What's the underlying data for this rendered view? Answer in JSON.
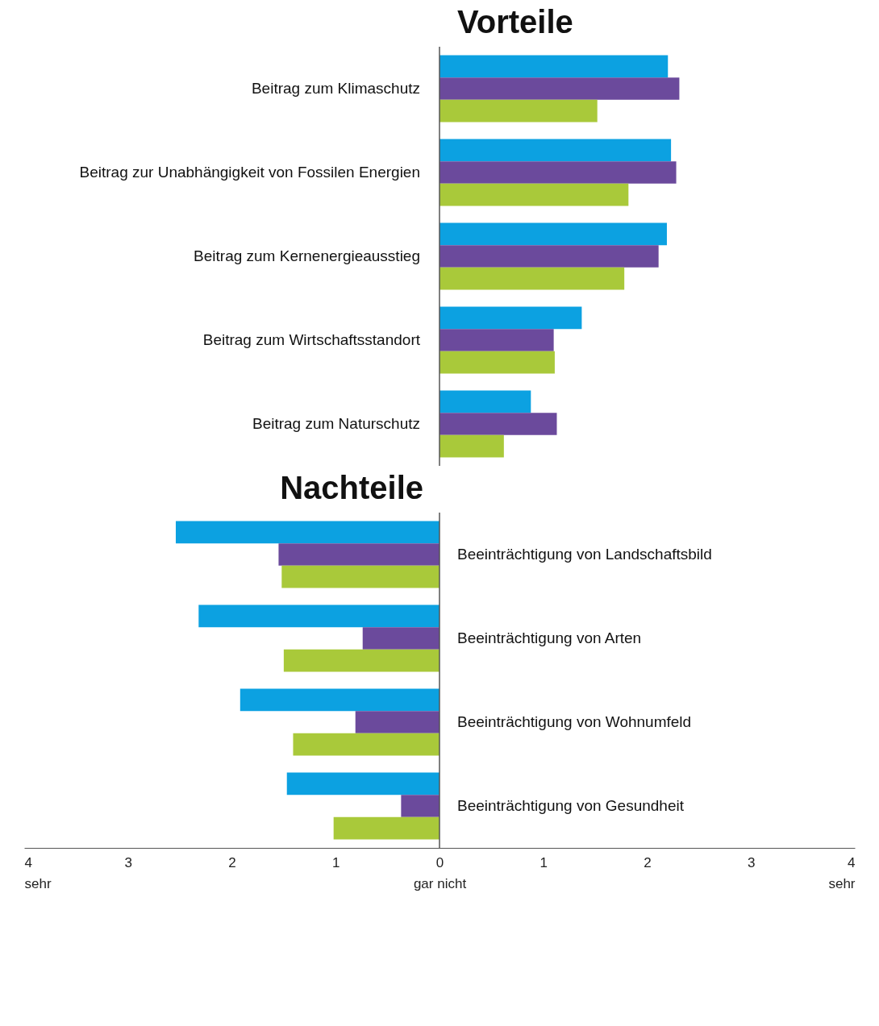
{
  "chart_data": [
    {
      "type": "bar",
      "orientation": "horizontal",
      "title": "Vorteile",
      "categories": [
        "Beitrag zum Klimaschutz",
        "Beitrag zur Unabhängigkeit von Fossilen Energien",
        "Beitrag zum Kernenergieausstieg",
        "Beitrag zum Wirtschaftsstandort",
        "Beitrag zum Naturschutz"
      ],
      "series": [
        {
          "color": "#0ca1e1",
          "values": [
            2.2,
            2.23,
            2.19,
            1.37,
            0.88
          ]
        },
        {
          "color": "#6b4a9c",
          "values": [
            2.31,
            2.28,
            2.11,
            1.1,
            1.13
          ]
        },
        {
          "color": "#a9c93a",
          "values": [
            1.52,
            1.82,
            1.78,
            1.11,
            0.62
          ]
        }
      ],
      "xlim": [
        -4,
        4
      ],
      "ref_lines": [
        {
          "axis": "x",
          "value": 0,
          "color": "#555555"
        }
      ],
      "tick_labels": false
    },
    {
      "type": "bar",
      "orientation": "horizontal",
      "title": "Nachteile",
      "categories": [
        "Beeinträchtigung von Landschaftsbild",
        "Beeinträchtigung von Arten",
        "Beeinträchtigung von Wohnumfeld",
        "Beeinträchtigung von Gesundheit"
      ],
      "series": [
        {
          "color": "#0ca1e1",
          "values": [
            -2.54,
            -2.32,
            -1.92,
            -1.47
          ]
        },
        {
          "color": "#6b4a9c",
          "values": [
            -1.55,
            -0.74,
            -0.81,
            -0.37
          ]
        },
        {
          "color": "#a9c93a",
          "values": [
            -1.52,
            -1.5,
            -1.41,
            -1.02
          ]
        }
      ],
      "xlim": [
        -4,
        4
      ],
      "xticks": [
        {
          "value": -4,
          "label": "4\nsehr"
        },
        {
          "value": -3,
          "label": "3"
        },
        {
          "value": -2,
          "label": "2"
        },
        {
          "value": -1,
          "label": "1"
        },
        {
          "value": 0,
          "label": "0\ngar nicht"
        },
        1,
        2,
        3,
        {
          "value": 4,
          "label": "4\nsehr"
        }
      ],
      "ref_lines": [
        {
          "axis": "x",
          "value": 0,
          "color": "#555555"
        }
      ],
      "tick_labels": "x"
    }
  ]
}
